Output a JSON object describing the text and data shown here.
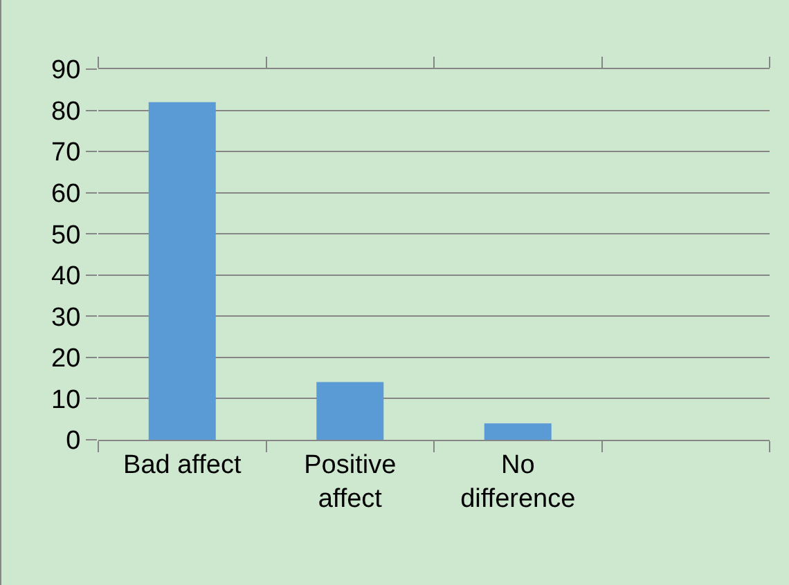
{
  "chart_data": {
    "type": "bar",
    "categories": [
      "Bad affect",
      "Positive affect",
      "No difference",
      null
    ],
    "values": [
      82,
      14,
      4,
      null
    ],
    "color": "#5b9bd5",
    "ylim": [
      0,
      90
    ],
    "yticks": [
      0,
      10,
      20,
      30,
      40,
      50,
      60,
      70,
      80,
      90
    ],
    "grid": "y",
    "legend": false
  }
}
